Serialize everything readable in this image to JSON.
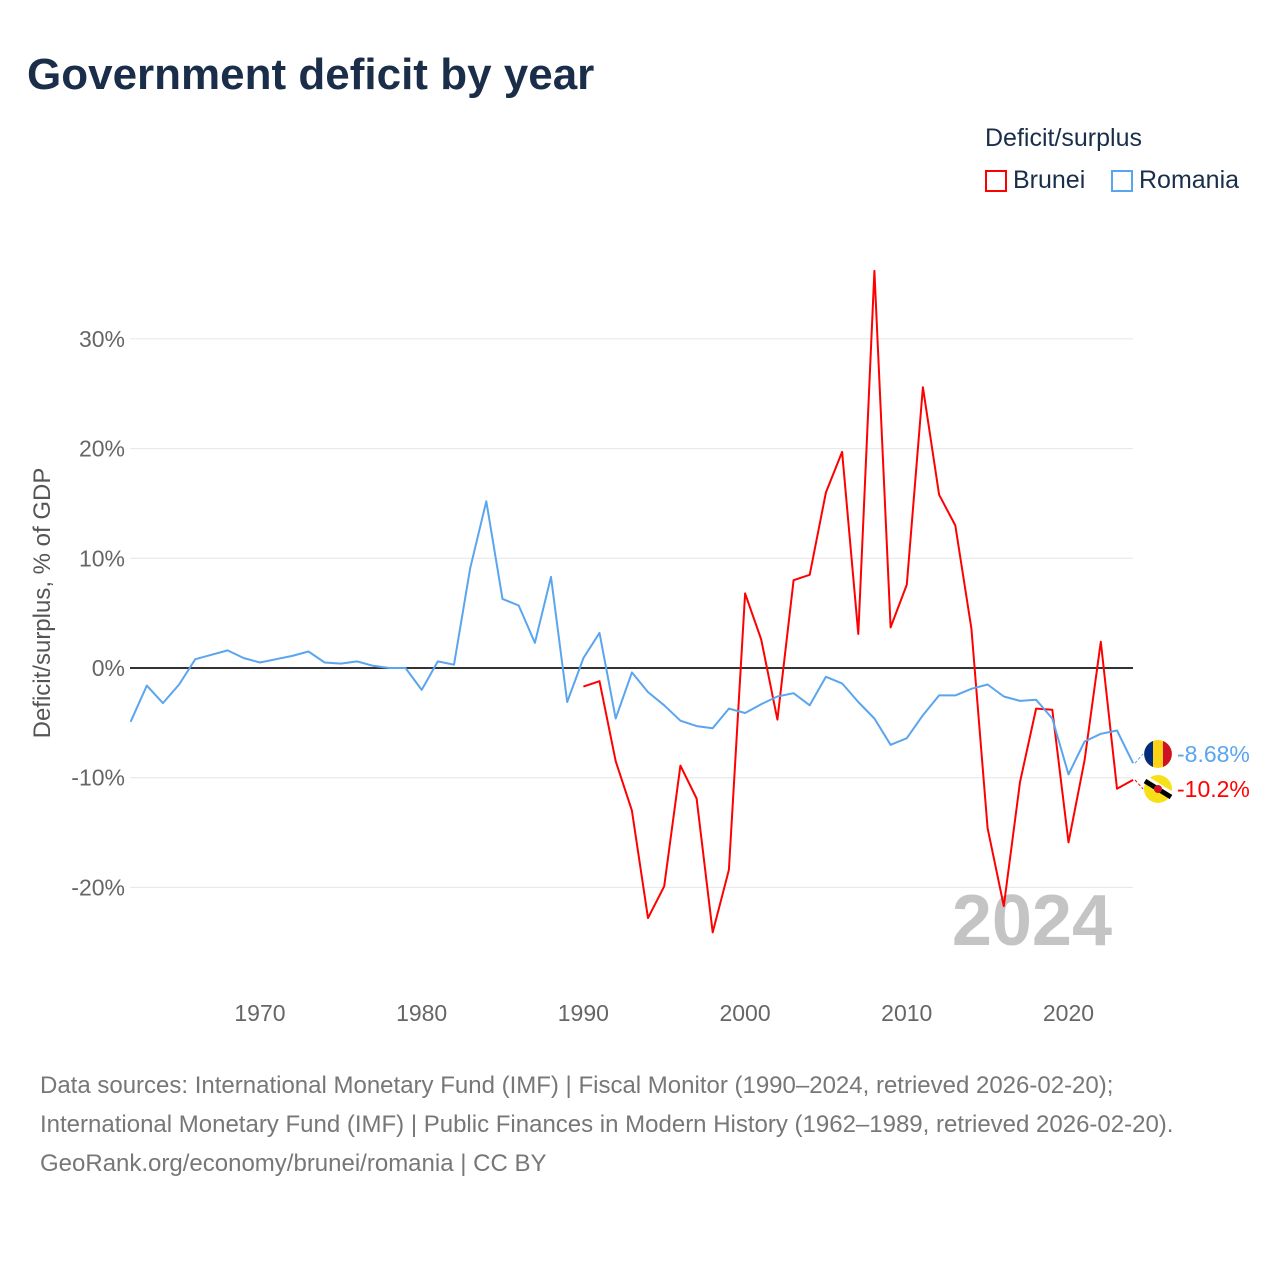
{
  "title": "Government deficit by year",
  "legend": {
    "title": "Deficit/surplus",
    "items": [
      {
        "name": "Brunei",
        "color": "#ff0000"
      },
      {
        "name": "Romania",
        "color": "#5aa5ef"
      }
    ]
  },
  "watermark_year": "2024",
  "end_labels": {
    "romania": "-8.68%",
    "brunei": "-10.2%"
  },
  "footer": {
    "sources": "Data sources: International Monetary Fund (IMF) | Fiscal Monitor (1990–2024, retrieved 2026-02-20); International Monetary Fund (IMF) | Public Finances in Modern History (1962–1989, retrieved 2026-02-20).",
    "credit": "GeoRank.org/economy/brunei/romania | CC BY"
  },
  "chart_data": {
    "type": "line",
    "title": "Government deficit by year",
    "xlabel": "",
    "ylabel": "Deficit/surplus, % of GDP",
    "xlim": [
      1962,
      2024
    ],
    "ylim": [
      -27,
      37
    ],
    "xticks": [
      1970,
      1980,
      1990,
      2000,
      2010,
      2020
    ],
    "yticks": [
      30,
      20,
      10,
      0,
      -10,
      -20
    ],
    "ytick_labels": [
      "30%",
      "20%",
      "10%",
      "0%",
      "-10%",
      "-20%"
    ],
    "grid": true,
    "legend_position": "top-right",
    "series": [
      {
        "name": "Brunei",
        "color": "#ff0000",
        "start": 1990,
        "values": [
          -1.7,
          -1.2,
          -8.5,
          -13.0,
          -22.8,
          -19.9,
          -8.9,
          -11.9,
          -24.1,
          -18.4,
          6.8,
          2.6,
          -4.7,
          8.0,
          8.5,
          16.0,
          19.7,
          3.1,
          36.2,
          3.7,
          7.6,
          25.6,
          15.8,
          13.0,
          3.6,
          -14.6,
          -21.7,
          -10.4,
          -3.7,
          -3.8,
          -15.9,
          -8.4,
          2.4,
          -11.0,
          -10.2
        ]
      },
      {
        "name": "Romania",
        "color": "#5aa5ef",
        "start": 1962,
        "values": [
          -4.9,
          -1.6,
          -3.2,
          -1.5,
          0.8,
          1.2,
          1.6,
          0.9,
          0.5,
          0.8,
          1.1,
          1.5,
          0.5,
          0.4,
          0.6,
          0.2,
          0.0,
          0.0,
          -2.0,
          0.6,
          0.3,
          9.1,
          15.2,
          6.3,
          5.7,
          2.3,
          8.3,
          -3.1,
          0.9,
          3.2,
          -4.6,
          -0.4,
          -2.2,
          -3.4,
          -4.8,
          -5.3,
          -5.5,
          -3.7,
          -4.1,
          -3.3,
          -2.6,
          -2.3,
          -3.4,
          -0.8,
          -1.4,
          -3.1,
          -4.6,
          -7.0,
          -6.4,
          -4.3,
          -2.5,
          -2.5,
          -1.9,
          -1.5,
          -2.6,
          -3.0,
          -2.9,
          -4.6,
          -9.7,
          -6.7,
          -6.0,
          -5.7,
          -8.68
        ]
      }
    ]
  }
}
